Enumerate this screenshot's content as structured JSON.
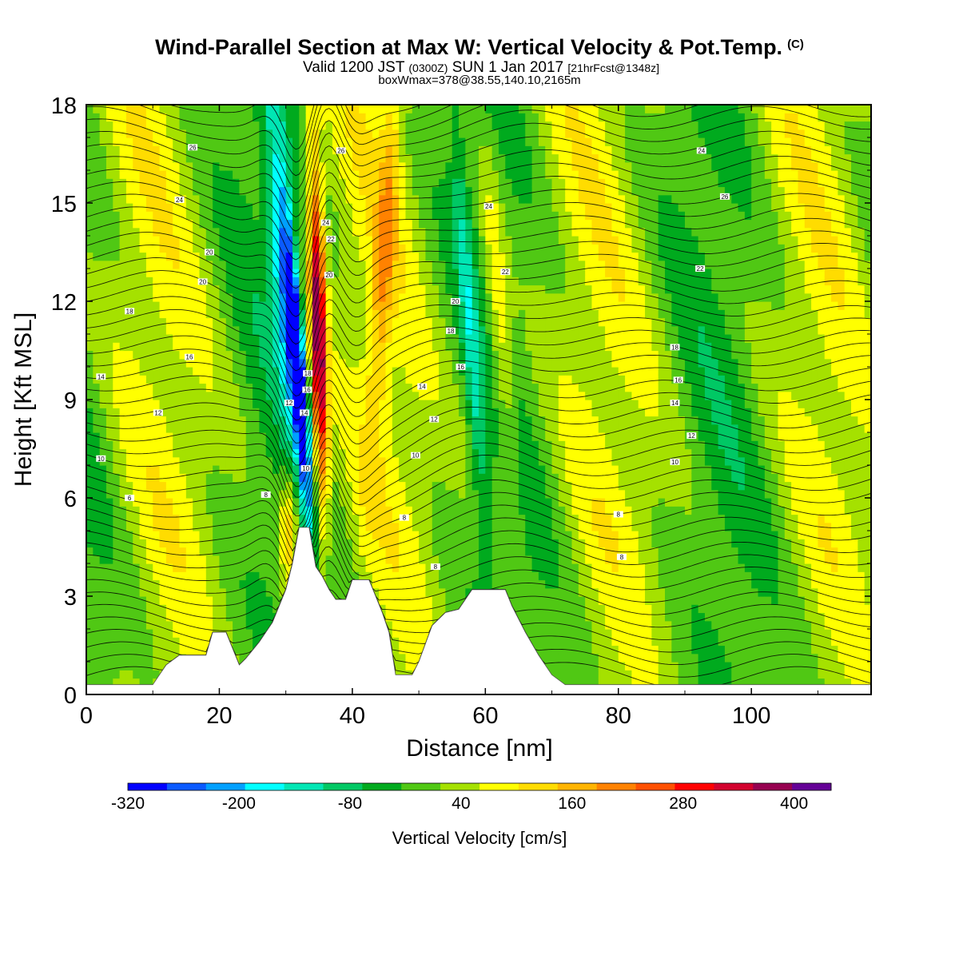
{
  "header": {
    "title": "Wind-Parallel Section at Max W: Vertical Velocity & Pot.Temp.",
    "copyright": "(C)",
    "valid_prefix": "Valid 1200 JST",
    "valid_utc": "(0300Z)",
    "valid_date": "SUN 1 Jan 2017",
    "forecast": "[21hrFcst@1348z]",
    "boxinfo": "boxWmax=378@38.55,140.10,2165m"
  },
  "chart_data": {
    "type": "heatmap",
    "xlabel": "Distance [nm]",
    "ylabel": "Height [Kft MSL]",
    "xlim": [
      0,
      118
    ],
    "ylim": [
      0,
      18
    ],
    "x_ticks": [
      "0",
      "20",
      "40",
      "60",
      "80",
      "100"
    ],
    "y_ticks": [
      "0",
      "3",
      "6",
      "9",
      "12",
      "15",
      "18"
    ],
    "colorbar": {
      "label": "Vertical Velocity [cm/s]",
      "tick_labels": [
        "-320",
        "-200",
        "-80",
        "40",
        "160",
        "280",
        "400"
      ],
      "tick_values": [
        -320,
        -200,
        -80,
        40,
        160,
        280,
        400
      ],
      "range": [
        -320,
        440
      ],
      "colors": [
        "#0000ff",
        "#0a5aff",
        "#00a0ff",
        "#00ffff",
        "#00e6b4",
        "#00c864",
        "#00aa1e",
        "#50c814",
        "#a5e100",
        "#ffff00",
        "#ffdc00",
        "#ffb400",
        "#ff8200",
        "#ff5000",
        "#ff0000",
        "#d2002d",
        "#960050",
        "#640096"
      ]
    },
    "terrain_kft": [
      [
        0,
        0.3
      ],
      [
        10,
        0.3
      ],
      [
        11,
        0.6
      ],
      [
        12,
        0.9
      ],
      [
        14,
        1.2
      ],
      [
        18,
        1.2
      ],
      [
        19,
        1.9
      ],
      [
        21,
        1.9
      ],
      [
        23,
        0.9
      ],
      [
        24,
        1.1
      ],
      [
        26,
        1.6
      ],
      [
        28,
        2.2
      ],
      [
        30,
        3.2
      ],
      [
        31,
        4.0
      ],
      [
        32,
        5.1
      ],
      [
        33.5,
        5.1
      ],
      [
        34.5,
        3.9
      ],
      [
        35.5,
        3.6
      ],
      [
        36.5,
        3.2
      ],
      [
        37.5,
        2.9
      ],
      [
        39,
        2.9
      ],
      [
        40,
        3.5
      ],
      [
        42.5,
        3.5
      ],
      [
        43.5,
        3.0
      ],
      [
        44.5,
        2.5
      ],
      [
        45.5,
        1.9
      ],
      [
        46.5,
        0.6
      ],
      [
        49,
        0.6
      ],
      [
        50,
        1.0
      ],
      [
        52,
        2.1
      ],
      [
        54,
        2.5
      ],
      [
        56,
        2.6
      ],
      [
        58,
        3.2
      ],
      [
        63,
        3.2
      ],
      [
        64,
        2.7
      ],
      [
        66,
        1.9
      ],
      [
        68,
        1.2
      ],
      [
        70,
        0.6
      ],
      [
        72,
        0.3
      ],
      [
        118,
        0.3
      ]
    ],
    "contour_label_values": [
      "6",
      "8",
      "10",
      "12",
      "14",
      "16",
      "18",
      "20",
      "22",
      "24",
      "26"
    ],
    "contour_labels": [
      {
        "x": 6.5,
        "y": 6.0,
        "text": "6"
      },
      {
        "x": 2.2,
        "y": 7.2,
        "text": "10"
      },
      {
        "x": 10.8,
        "y": 8.6,
        "text": "12"
      },
      {
        "x": 2.2,
        "y": 9.7,
        "text": "14"
      },
      {
        "x": 15.5,
        "y": 10.3,
        "text": "16"
      },
      {
        "x": 6.5,
        "y": 11.7,
        "text": "18"
      },
      {
        "x": 17.5,
        "y": 12.6,
        "text": "20"
      },
      {
        "x": 18.5,
        "y": 13.5,
        "text": "20"
      },
      {
        "x": 14.0,
        "y": 15.1,
        "text": "24"
      },
      {
        "x": 16.0,
        "y": 16.7,
        "text": "26"
      },
      {
        "x": 27.0,
        "y": 6.1,
        "text": "8"
      },
      {
        "x": 30.5,
        "y": 8.9,
        "text": "12"
      },
      {
        "x": 33.0,
        "y": 6.9,
        "text": "10"
      },
      {
        "x": 32.8,
        "y": 8.6,
        "text": "14"
      },
      {
        "x": 33.2,
        "y": 9.3,
        "text": "16"
      },
      {
        "x": 33.3,
        "y": 9.8,
        "text": "18"
      },
      {
        "x": 36.5,
        "y": 12.8,
        "text": "20"
      },
      {
        "x": 36.8,
        "y": 13.9,
        "text": "22"
      },
      {
        "x": 36.0,
        "y": 14.4,
        "text": "24"
      },
      {
        "x": 38.3,
        "y": 16.6,
        "text": "26"
      },
      {
        "x": 47.8,
        "y": 5.4,
        "text": "8"
      },
      {
        "x": 52.5,
        "y": 3.9,
        "text": "8"
      },
      {
        "x": 49.5,
        "y": 7.3,
        "text": "10"
      },
      {
        "x": 52.3,
        "y": 8.4,
        "text": "12"
      },
      {
        "x": 50.5,
        "y": 9.4,
        "text": "14"
      },
      {
        "x": 56.3,
        "y": 10.0,
        "text": "16"
      },
      {
        "x": 54.8,
        "y": 11.1,
        "text": "18"
      },
      {
        "x": 55.5,
        "y": 12.0,
        "text": "20"
      },
      {
        "x": 63.0,
        "y": 12.9,
        "text": "22"
      },
      {
        "x": 60.5,
        "y": 14.9,
        "text": "24"
      },
      {
        "x": 80.0,
        "y": 5.5,
        "text": "8"
      },
      {
        "x": 80.5,
        "y": 4.2,
        "text": "8"
      },
      {
        "x": 88.5,
        "y": 7.1,
        "text": "10"
      },
      {
        "x": 91.0,
        "y": 7.9,
        "text": "12"
      },
      {
        "x": 88.5,
        "y": 8.9,
        "text": "14"
      },
      {
        "x": 89.0,
        "y": 9.6,
        "text": "16"
      },
      {
        "x": 88.5,
        "y": 10.6,
        "text": "18"
      },
      {
        "x": 92.3,
        "y": 13.0,
        "text": "22"
      },
      {
        "x": 96.0,
        "y": 15.2,
        "text": "26"
      },
      {
        "x": 92.5,
        "y": 16.6,
        "text": "24"
      }
    ]
  }
}
